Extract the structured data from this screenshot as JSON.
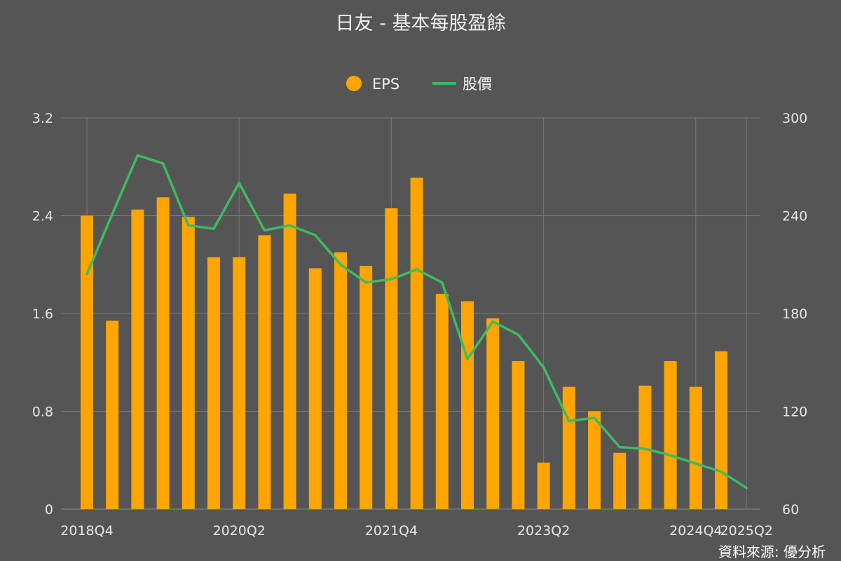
{
  "chart_data": {
    "type": "bar+line",
    "title": "日友 - 基本每股盈餘",
    "source": "資料來源: 優分析",
    "legend": {
      "placement": "top-center",
      "eps_label": "EPS",
      "price_label": "股價"
    },
    "colors": {
      "background": "#555555",
      "eps": "#ffa500",
      "price": "#3fba62",
      "grid": "#777777"
    },
    "grid": true,
    "categories": [
      "2018Q4",
      "2019Q1",
      "2019Q2",
      "2019Q3",
      "2019Q4",
      "2020Q1",
      "2020Q2",
      "2020Q3",
      "2020Q4",
      "2021Q1",
      "2021Q2",
      "2021Q3",
      "2021Q4",
      "2022Q1",
      "2022Q2",
      "2022Q3",
      "2022Q4",
      "2023Q1",
      "2023Q2",
      "2023Q3",
      "2023Q4",
      "2024Q1",
      "2024Q2",
      "2024Q3",
      "2024Q4",
      "2025Q1",
      "2025Q2"
    ],
    "x_tick_labels": [
      "2018Q4",
      "2020Q2",
      "2021Q4",
      "2023Q2",
      "2024Q4",
      "2025Q2"
    ],
    "y_left": {
      "range": [
        0,
        3.2
      ],
      "ticks": [
        "0",
        "0.8",
        "1.6",
        "2.4",
        "3.2"
      ]
    },
    "y_right": {
      "range": [
        60,
        300
      ],
      "ticks": [
        "60",
        "120",
        "180",
        "240",
        "300"
      ]
    },
    "series": [
      {
        "name": "EPS",
        "kind": "bar",
        "axis": "left",
        "values": [
          2.4,
          1.54,
          2.45,
          2.55,
          2.39,
          2.06,
          2.06,
          2.24,
          2.58,
          1.97,
          2.1,
          1.99,
          2.46,
          2.71,
          1.76,
          1.7,
          1.56,
          1.21,
          0.38,
          1.0,
          0.8,
          0.46,
          1.01,
          1.21,
          1.0,
          1.29,
          null
        ]
      },
      {
        "name": "股價",
        "kind": "line",
        "axis": "right",
        "values": [
          204,
          241,
          277,
          272,
          234,
          232,
          260,
          231,
          234,
          228,
          210,
          199,
          201,
          207,
          199,
          152,
          175,
          167,
          147,
          114,
          116,
          98,
          97,
          93,
          88,
          83,
          73
        ]
      }
    ]
  }
}
